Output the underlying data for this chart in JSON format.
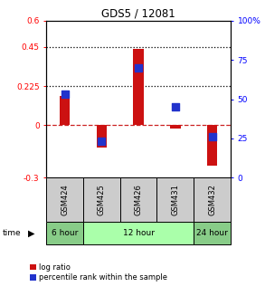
{
  "title": "GDS5 / 12081",
  "samples": [
    "GSM424",
    "GSM425",
    "GSM426",
    "GSM431",
    "GSM432"
  ],
  "log_ratio": [
    0.17,
    -0.13,
    0.44,
    -0.02,
    -0.23
  ],
  "percentile_rank_pct": [
    53,
    23,
    70,
    45,
    26
  ],
  "ylim_left": [
    -0.3,
    0.6
  ],
  "ylim_right": [
    0,
    100
  ],
  "yticks_left": [
    -0.3,
    0,
    0.225,
    0.45,
    0.6
  ],
  "ytick_labels_left": [
    "-0.3",
    "0",
    "0.225",
    "0.45",
    "0.6"
  ],
  "yticks_right": [
    0,
    25,
    50,
    75,
    100
  ],
  "ytick_labels_right": [
    "0",
    "25",
    "50",
    "75",
    "100%"
  ],
  "hlines": [
    0.225,
    0.45
  ],
  "time_labels": [
    "6 hour",
    "12 hour",
    "24 hour"
  ],
  "time_groups": [
    1,
    3,
    1
  ],
  "bar_color": "#cc1111",
  "dot_color": "#2233cc",
  "dashed_zero_color": "#cc2222",
  "bar_width": 0.28,
  "dot_size": 28,
  "time_color_6": "#88cc88",
  "time_color_12": "#aaffaa",
  "time_color_24": "#88cc88",
  "sample_bg": "#cccccc",
  "legend_log": "log ratio",
  "legend_pct": "percentile rank within the sample"
}
